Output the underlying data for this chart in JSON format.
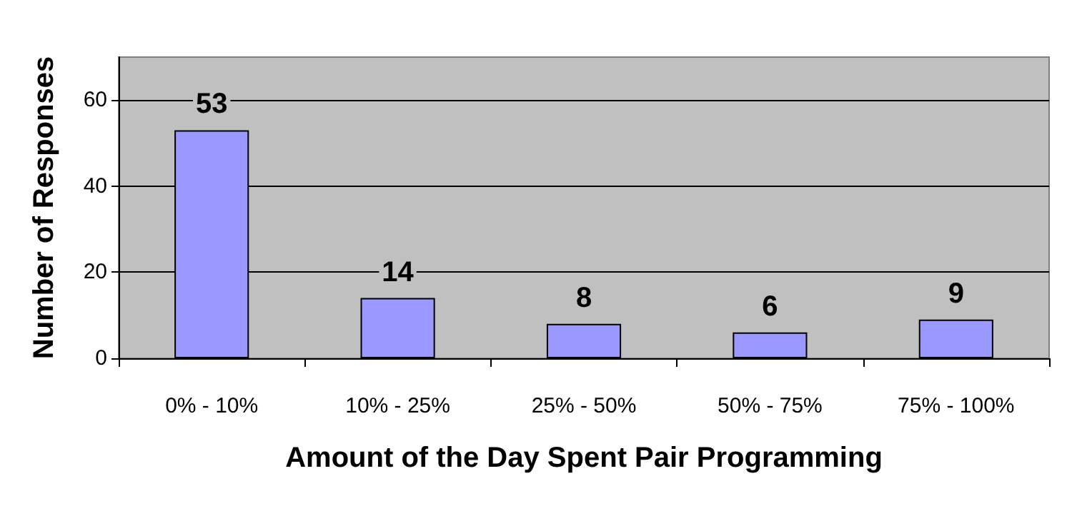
{
  "chart_data": {
    "type": "bar",
    "xlabel": "Amount of the Day Spent Pair Programming",
    "ylabel": "Number of Responses",
    "categories": [
      "0% - 10%",
      "10% - 25%",
      "25% - 50%",
      "50% - 75%",
      "75% - 100%"
    ],
    "values": [
      53,
      14,
      8,
      6,
      9
    ],
    "color": "#9999ff",
    "ylim": [
      0,
      70
    ],
    "yticks": [
      0,
      20,
      40,
      60
    ],
    "grid": "y",
    "data_labels": true
  }
}
